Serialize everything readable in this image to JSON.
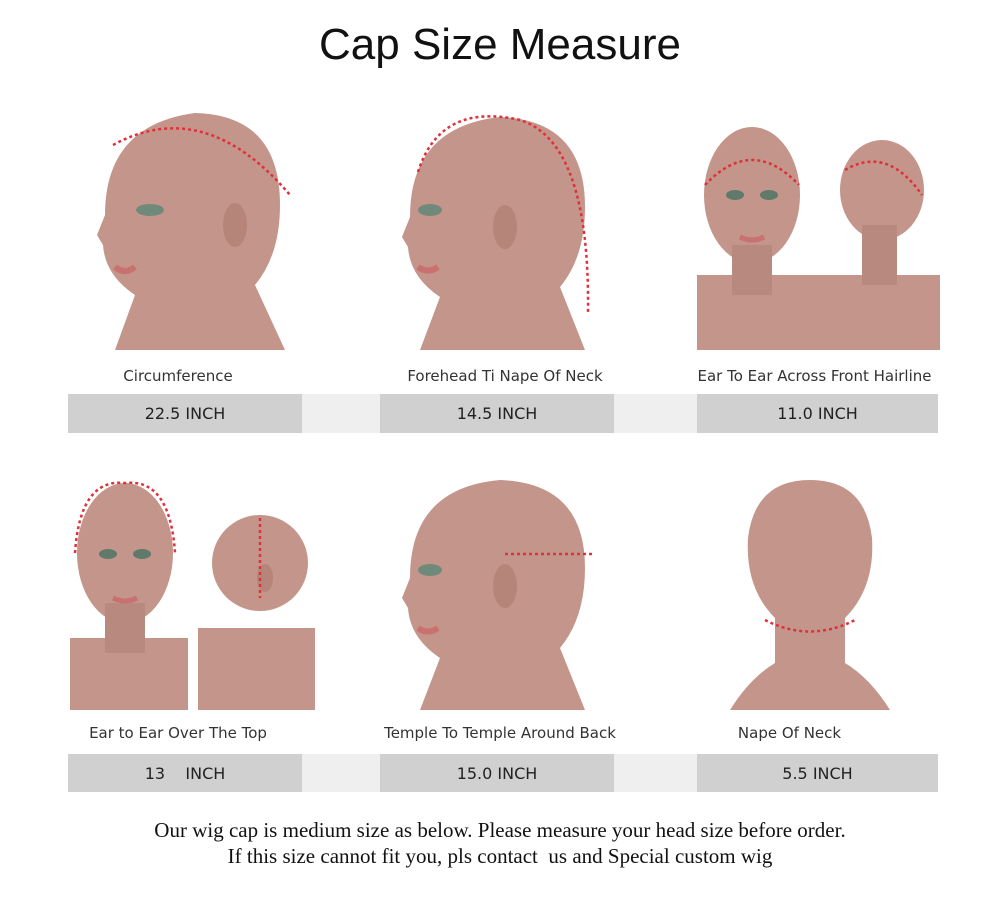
{
  "title": "Cap Size Measure",
  "measurements": [
    {
      "label": "Circumference",
      "value": "22.5 INCH"
    },
    {
      "label": "Forehead Ti Nape Of Neck",
      "value": "14.5 INCH"
    },
    {
      "label": "Ear To Ear Across Front Hairline",
      "value": "11.0 INCH"
    },
    {
      "label": "Ear to Ear Over The Top",
      "value": "13    INCH"
    },
    {
      "label": "Temple To Temple Around Back",
      "value": "15.0 INCH"
    },
    {
      "label": "Nape Of Neck",
      "value": "5.5 INCH"
    }
  ],
  "note": {
    "line1": "Our wig cap is medium size as below. Please measure your head size before order.",
    "line2": "If this size cannot fit you, pls contact  us and Special custom wig"
  },
  "colors": {
    "skin": "#c4958a",
    "measure_line": "#e0303a",
    "value_bar": "#d0d0d0",
    "bar_gap": "#efefef"
  }
}
